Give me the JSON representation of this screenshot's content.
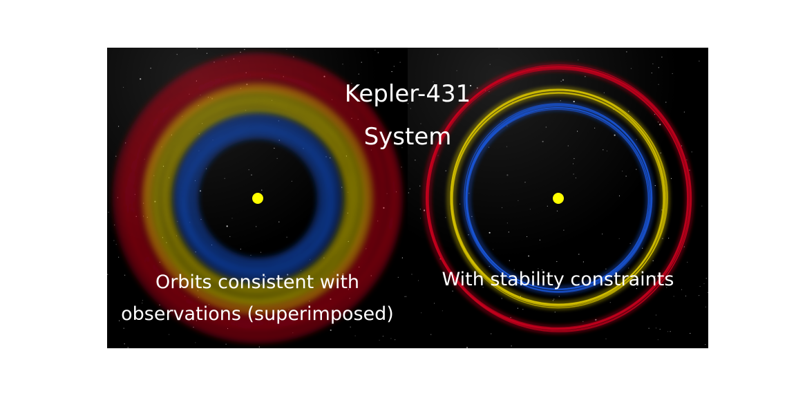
{
  "title_line1": "Kepler-431",
  "title_line2": "System",
  "panels": [
    {
      "caption_line1": "Orbits consistent with",
      "caption_line2": "observations (superimposed)",
      "orbit_style": "diffuse"
    },
    {
      "caption_line1": "With stability constraints",
      "caption_line2": "",
      "orbit_style": "sharp"
    }
  ],
  "planets": [
    {
      "name": "inner",
      "color": "#1a55d6"
    },
    {
      "name": "middle",
      "color": "#d6c200"
    },
    {
      "name": "outer",
      "color": "#c8001e"
    }
  ],
  "colors": {
    "background": "#000000",
    "star": "#ffff00",
    "text": "#ffffff"
  }
}
